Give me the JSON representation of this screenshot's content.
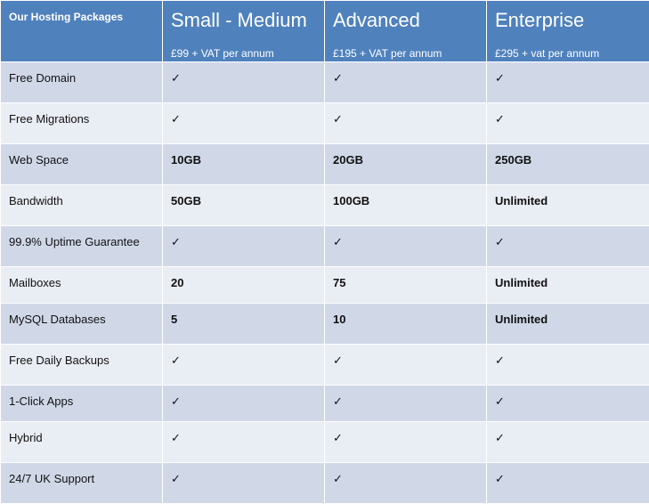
{
  "table": {
    "corner_label": "Our Hosting Packages",
    "plans": [
      {
        "name": "Small - Medium",
        "price": "£99 + VAT per annum"
      },
      {
        "name": "Advanced",
        "price": "£195 + VAT per annum"
      },
      {
        "name": "Enterprise",
        "price": "£295 + vat per annum"
      }
    ],
    "check_glyph": "✓",
    "rows": [
      {
        "feature": "Free Domain",
        "values": [
          "✓",
          "✓",
          "✓"
        ]
      },
      {
        "feature": "Free Migrations",
        "values": [
          "✓",
          "✓",
          "✓"
        ]
      },
      {
        "feature": "Web Space",
        "values": [
          "10GB",
          "20GB",
          "250GB"
        ]
      },
      {
        "feature": "Bandwidth",
        "values": [
          "50GB",
          "100GB",
          "Unlimited"
        ]
      },
      {
        "feature": "99.9% Uptime Guarantee",
        "values": [
          "✓",
          "✓",
          "✓"
        ]
      },
      {
        "feature": "Mailboxes",
        "values": [
          "20",
          "75",
          "Unlimited"
        ]
      },
      {
        "feature": "MySQL Databases",
        "values": [
          "5",
          "10",
          "Unlimited"
        ]
      },
      {
        "feature": "Free Daily Backups",
        "values": [
          "✓",
          "✓",
          "✓"
        ]
      },
      {
        "feature": "1-Click Apps",
        "values": [
          "✓",
          "✓",
          "✓"
        ]
      },
      {
        "feature": "Hybrid",
        "values": [
          "✓",
          "✓",
          "✓"
        ]
      },
      {
        "feature": "24/7 UK Support",
        "values": [
          "✓",
          "✓",
          "✓"
        ]
      }
    ]
  },
  "colors": {
    "header_bg": "#4f81bd",
    "row_odd_bg": "#d0d8e8",
    "row_even_bg": "#e9edf4",
    "check_color": "#4f81bd"
  }
}
